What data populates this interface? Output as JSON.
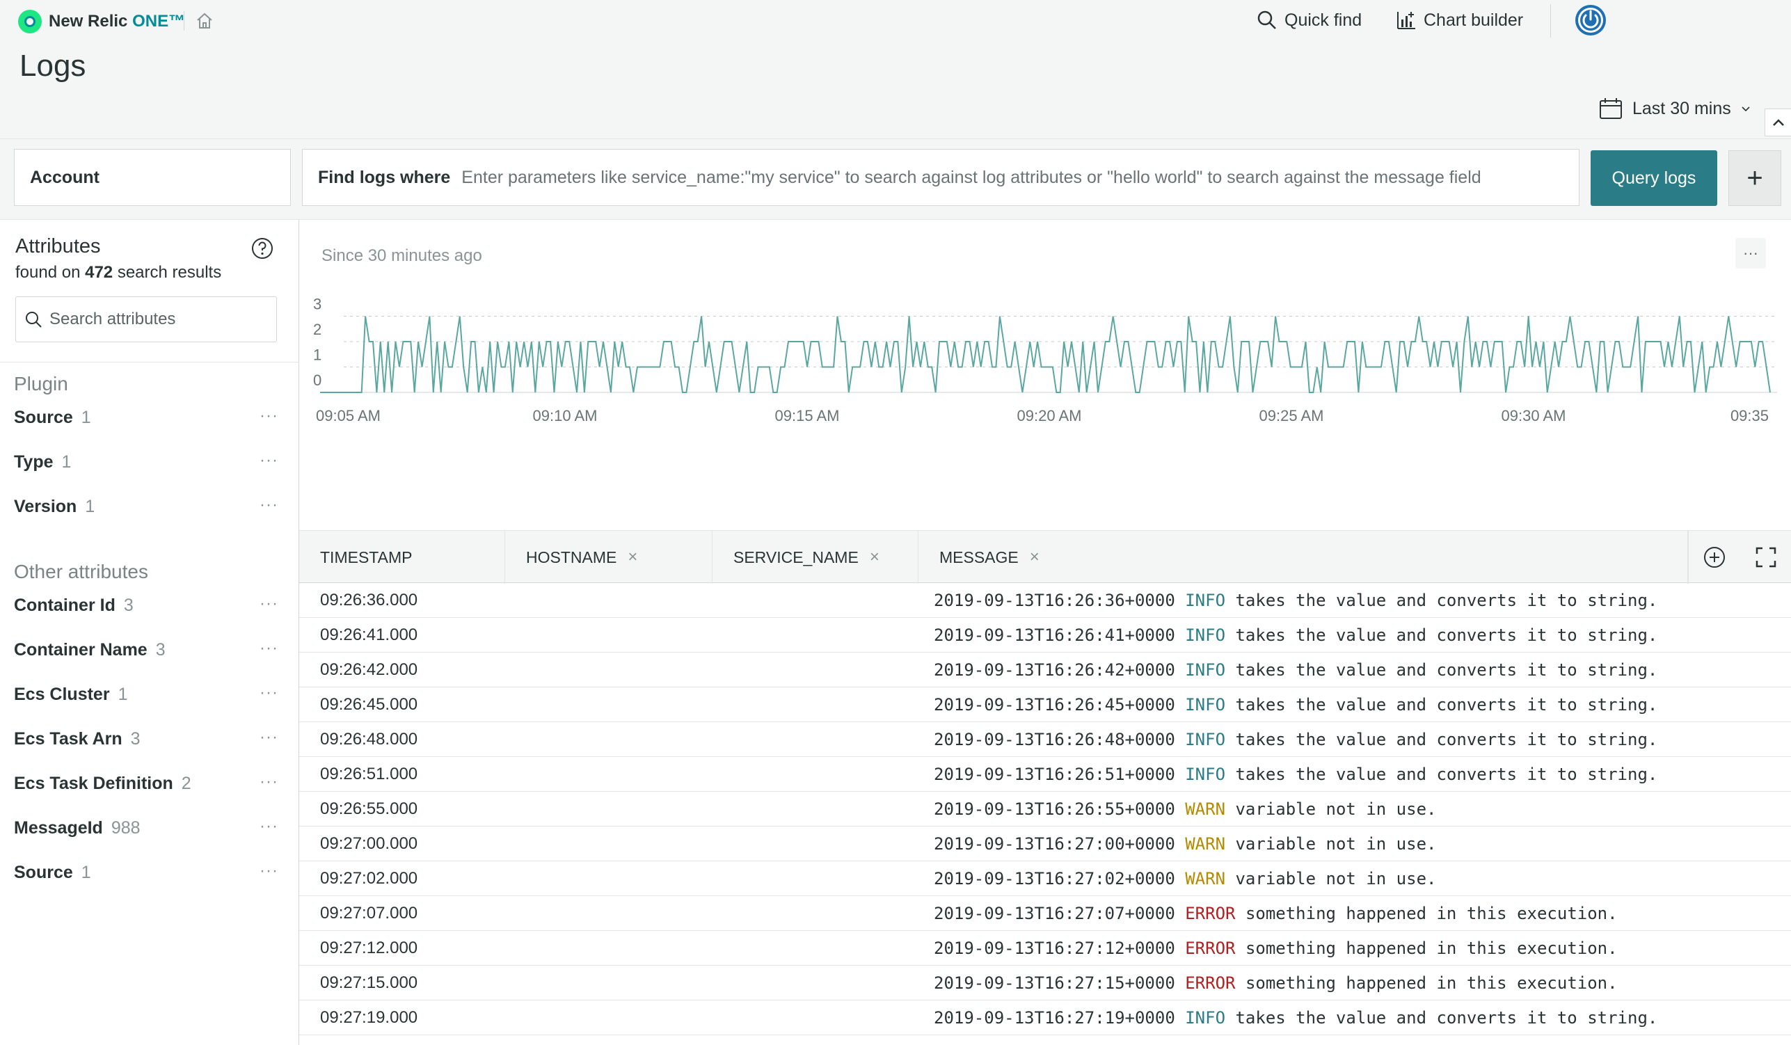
{
  "app": {
    "brand": "New Relic",
    "brand_suffix": "ONE™",
    "quick_find": "Quick find",
    "chart_builder": "Chart builder"
  },
  "page": {
    "title": "Logs",
    "time_range": "Last 30 mins"
  },
  "filter": {
    "account_label": "Account",
    "find_label": "Find logs where",
    "find_placeholder": "Enter parameters like service_name:\"my service\" to search against log attributes or \"hello world\" to search against the message field",
    "query_button": "Query logs",
    "add_button": "+"
  },
  "sidebar": {
    "title": "Attributes",
    "found_prefix": "found on",
    "found_count": "472",
    "found_suffix": "search results",
    "search_placeholder": "Search attributes",
    "groups": [
      {
        "label": "Plugin",
        "items": [
          {
            "name": "Source",
            "count": "1"
          },
          {
            "name": "Type",
            "count": "1"
          },
          {
            "name": "Version",
            "count": "1"
          }
        ]
      },
      {
        "label": "Other attributes",
        "items": [
          {
            "name": "Container Id",
            "count": "3"
          },
          {
            "name": "Container Name",
            "count": "3"
          },
          {
            "name": "Ecs Cluster",
            "count": "1"
          },
          {
            "name": "Ecs Task Arn",
            "count": "3"
          },
          {
            "name": "Ecs Task Definition",
            "count": "2"
          },
          {
            "name": "MessageId",
            "count": "988"
          },
          {
            "name": "Source",
            "count": "1"
          }
        ]
      }
    ]
  },
  "chart_header": {
    "since": "Since 30 minutes ago",
    "more": "···"
  },
  "chart_data": {
    "type": "line",
    "title": "",
    "xlabel": "",
    "ylabel": "",
    "ylim": [
      0,
      3
    ],
    "yticks": [
      "0",
      "1",
      "2",
      "3"
    ],
    "xticks": [
      "09:05 AM",
      "09:10 AM",
      "09:15 AM",
      "09:20 AM",
      "09:25 AM",
      "09:30 AM",
      "09:35"
    ],
    "grid": "dashed horizontal",
    "color": "#5aa7a0",
    "series": [
      {
        "values": [
          0,
          0,
          0,
          0,
          0,
          0,
          0,
          0,
          0,
          0,
          0,
          0,
          3,
          2,
          2,
          0,
          2,
          0,
          2,
          0,
          2,
          1,
          2,
          2,
          2,
          0,
          2,
          1,
          2,
          3,
          0,
          2,
          0,
          2,
          1,
          1,
          2,
          3,
          1,
          0,
          2,
          2,
          0,
          1,
          0,
          2,
          0,
          2,
          1,
          1,
          2,
          0,
          2,
          1,
          2,
          1,
          2,
          0,
          2,
          1,
          2,
          2,
          0,
          2,
          1,
          2,
          2,
          1,
          0,
          2,
          0,
          2,
          2,
          2,
          1,
          2,
          1,
          0,
          2,
          1,
          2,
          1,
          1,
          0,
          1,
          1,
          1,
          1,
          1,
          1,
          1,
          2,
          2,
          2,
          1,
          1,
          0,
          0,
          1,
          2,
          2,
          3,
          1,
          2,
          1,
          0,
          1,
          2,
          2,
          2,
          1,
          0,
          1,
          2,
          0,
          0,
          1,
          1,
          1,
          1,
          0,
          0,
          1,
          1,
          2,
          2,
          2,
          2,
          2,
          1,
          2,
          2,
          2,
          1,
          1,
          1,
          1,
          3,
          2,
          2,
          0,
          1,
          1,
          1,
          2,
          2,
          1,
          2,
          1,
          1,
          2,
          1,
          2,
          2,
          0,
          1,
          3,
          1,
          2,
          1,
          2,
          1,
          1,
          0,
          2,
          2,
          2,
          1,
          2,
          1,
          1,
          2,
          2,
          1,
          2,
          1,
          2,
          2,
          1,
          1,
          3,
          2,
          1,
          1,
          2,
          1,
          0,
          1,
          2,
          1,
          2,
          1,
          1,
          1,
          1,
          0,
          0,
          2,
          1,
          2,
          1,
          0,
          2,
          0,
          1,
          2,
          0,
          1,
          2,
          2,
          3,
          2,
          1,
          2,
          2,
          1,
          0,
          0,
          1,
          2,
          2,
          2,
          1,
          1,
          2,
          2,
          1,
          2,
          2,
          0,
          3,
          2,
          2,
          0,
          2,
          0,
          2,
          2,
          1,
          1,
          2,
          3,
          1,
          0,
          2,
          2,
          2,
          0,
          1,
          2,
          2,
          2,
          1,
          3,
          2,
          2,
          2,
          1,
          1,
          1,
          1,
          2,
          0,
          0,
          1,
          0,
          2,
          1,
          1,
          1,
          1,
          1,
          2,
          2,
          2,
          0,
          2,
          1,
          1,
          1,
          1,
          1,
          2,
          2,
          1,
          0,
          2,
          2,
          1,
          2,
          2,
          3,
          2,
          2,
          1,
          2,
          1,
          2,
          2,
          2,
          1,
          2,
          0,
          2,
          3,
          1,
          2,
          1,
          2,
          2,
          1,
          2,
          2,
          2,
          0,
          1,
          1,
          2,
          2,
          1,
          3,
          1,
          2,
          1,
          2,
          0,
          1,
          2,
          1,
          2,
          2,
          3,
          2,
          1,
          1,
          2,
          2,
          1,
          0,
          2,
          2,
          0,
          1,
          2,
          2,
          1,
          1,
          1,
          2,
          3,
          0,
          2,
          2,
          2,
          2,
          2,
          1,
          2,
          1,
          2,
          3,
          1,
          2,
          2,
          0,
          1,
          2,
          0,
          1,
          1,
          2,
          1,
          2,
          3,
          2,
          1,
          2,
          2,
          2,
          2,
          1,
          2,
          2,
          1,
          0
        ]
      }
    ]
  },
  "table": {
    "columns": [
      {
        "label": "TIMESTAMP",
        "removable": false
      },
      {
        "label": "HOSTNAME",
        "removable": true
      },
      {
        "label": "SERVICE_NAME",
        "removable": true
      },
      {
        "label": "MESSAGE",
        "removable": true
      }
    ],
    "remove_glyph": "×",
    "rows": [
      {
        "ts": "09:26:36.000",
        "stamp": "2019-09-13T16:26:36+0000",
        "level": "INFO",
        "text": "takes the value and converts it to string."
      },
      {
        "ts": "09:26:41.000",
        "stamp": "2019-09-13T16:26:41+0000",
        "level": "INFO",
        "text": "takes the value and converts it to string."
      },
      {
        "ts": "09:26:42.000",
        "stamp": "2019-09-13T16:26:42+0000",
        "level": "INFO",
        "text": "takes the value and converts it to string."
      },
      {
        "ts": "09:26:45.000",
        "stamp": "2019-09-13T16:26:45+0000",
        "level": "INFO",
        "text": "takes the value and converts it to string."
      },
      {
        "ts": "09:26:48.000",
        "stamp": "2019-09-13T16:26:48+0000",
        "level": "INFO",
        "text": "takes the value and converts it to string."
      },
      {
        "ts": "09:26:51.000",
        "stamp": "2019-09-13T16:26:51+0000",
        "level": "INFO",
        "text": "takes the value and converts it to string."
      },
      {
        "ts": "09:26:55.000",
        "stamp": "2019-09-13T16:26:55+0000",
        "level": "WARN",
        "text": "variable not in use."
      },
      {
        "ts": "09:27:00.000",
        "stamp": "2019-09-13T16:27:00+0000",
        "level": "WARN",
        "text": "variable not in use."
      },
      {
        "ts": "09:27:02.000",
        "stamp": "2019-09-13T16:27:02+0000",
        "level": "WARN",
        "text": "variable not in use."
      },
      {
        "ts": "09:27:07.000",
        "stamp": "2019-09-13T16:27:07+0000",
        "level": "ERROR",
        "text": "something happened in this execution."
      },
      {
        "ts": "09:27:12.000",
        "stamp": "2019-09-13T16:27:12+0000",
        "level": "ERROR",
        "text": "something happened in this execution."
      },
      {
        "ts": "09:27:15.000",
        "stamp": "2019-09-13T16:27:15+0000",
        "level": "ERROR",
        "text": "something happened in this execution."
      },
      {
        "ts": "09:27:19.000",
        "stamp": "2019-09-13T16:27:19+0000",
        "level": "INFO",
        "text": "takes the value and converts it to string."
      }
    ]
  },
  "icons": {
    "logo": "new-relic-logo-icon",
    "home": "home-icon",
    "search": "search-icon",
    "chart": "chart-builder-icon",
    "power": "power-icon",
    "calendar": "calendar-icon",
    "help": "help-icon",
    "add_column": "add-column-icon",
    "fullscreen": "fullscreen-icon"
  },
  "colors": {
    "accent": "#2a7c86",
    "info": "#2a7c86",
    "warn": "#b38a00",
    "error": "#b02020"
  }
}
